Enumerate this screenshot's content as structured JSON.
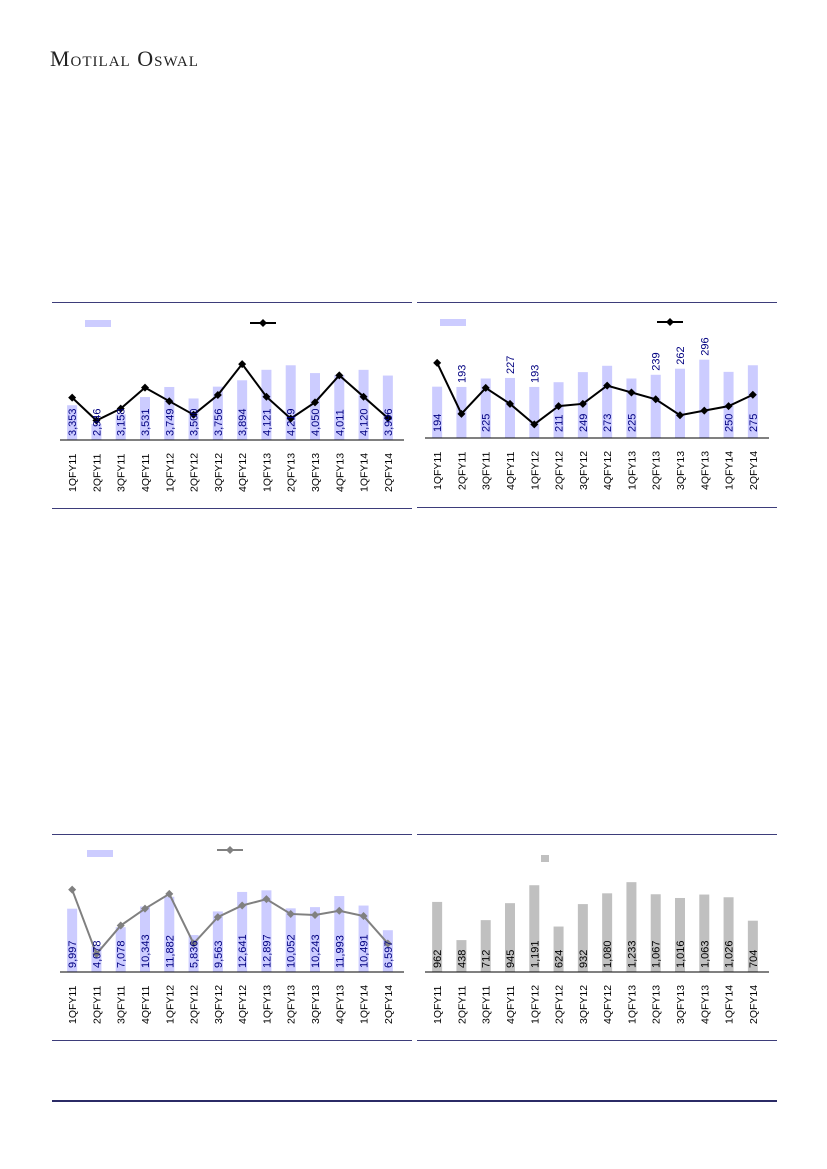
{
  "header": {
    "brand": "Motilal Oswal"
  },
  "chart_data": [
    {
      "type": "bar",
      "categories": [
        "1QFY11",
        "2QFY11",
        "3QFY11",
        "4QFY11",
        "1QFY12",
        "2QFY12",
        "3QFY12",
        "4QFY12",
        "1QFY13",
        "2QFY13",
        "3QFY13",
        "4QFY13",
        "1QFY14",
        "2QFY14"
      ],
      "series": [
        {
          "type": "bar",
          "values": [
            3353,
            2946,
            3158,
            3531,
            3749,
            3500,
            3756,
            3894,
            4121,
            4219,
            4050,
            4011,
            4120,
            3996
          ],
          "labels": [
            "3,353",
            "2,946",
            "3,158",
            "3,531",
            "3,749",
            "3,500",
            "3,756",
            "3,894",
            "4,121",
            "4,219",
            "4,050",
            "4,011",
            "4,120",
            "3,996"
          ]
        },
        {
          "type": "line",
          "values": [
            3353,
            2946,
            3158,
            3531,
            3290,
            3050,
            3400,
            3950,
            3370,
            2980,
            3270,
            3750,
            3370,
            2990
          ]
        }
      ],
      "colors": {
        "bar": "#ccccff",
        "line": "#000000",
        "label": "#000080"
      }
    },
    {
      "type": "bar",
      "categories": [
        "1QFY11",
        "2QFY11",
        "3QFY11",
        "4QFY11",
        "1QFY12",
        "2QFY12",
        "3QFY12",
        "4QFY12",
        "1QFY13",
        "2QFY13",
        "3QFY13",
        "4QFY13",
        "1QFY14",
        "2QFY14"
      ],
      "series": [
        {
          "type": "bar",
          "values": [
            194,
            193,
            225,
            227,
            193,
            211,
            249,
            273,
            225,
            239,
            262,
            296,
            250,
            275
          ],
          "labels": [
            "194",
            "193",
            "225",
            "227",
            "193",
            "211",
            "249",
            "273",
            "225",
            "239",
            "262",
            "296",
            "250",
            "275"
          ]
        },
        {
          "type": "line",
          "values": [
            305,
            193,
            250,
            215,
            170,
            210,
            215,
            255,
            240,
            225,
            190,
            200,
            210,
            235
          ]
        }
      ],
      "colors": {
        "bar": "#ccccff",
        "line": "#000000",
        "label": "#000080"
      }
    },
    {
      "type": "bar",
      "categories": [
        "1QFY11",
        "2QFY11",
        "3QFY11",
        "4QFY11",
        "1QFY12",
        "2QFY12",
        "3QFY12",
        "4QFY12",
        "1QFY13",
        "2QFY13",
        "3QFY13",
        "4QFY13",
        "1QFY14",
        "2QFY14"
      ],
      "series": [
        {
          "type": "bar",
          "values": [
            9997,
            4078,
            7078,
            10343,
            11882,
            5836,
            9563,
            12641,
            12897,
            10052,
            10243,
            11993,
            10491,
            6597
          ],
          "labels": [
            "9,997",
            "4,078",
            "7,078",
            "10,343",
            "11,882",
            "5,836",
            "9,563",
            "12,641",
            "12,897",
            "10,052",
            "10,243",
            "11,993",
            "10,491",
            "6,597"
          ]
        },
        {
          "type": "line",
          "values": [
            12800,
            6700,
            9400,
            11000,
            12400,
            7700,
            10200,
            11300,
            11900,
            10500,
            10400,
            10800,
            10300,
            7700
          ]
        }
      ],
      "colors": {
        "bar": "#ccccff",
        "line": "#808080",
        "label": "#000080"
      }
    },
    {
      "type": "bar",
      "categories": [
        "1QFY11",
        "2QFY11",
        "3QFY11",
        "4QFY11",
        "1QFY12",
        "2QFY12",
        "3QFY12",
        "4QFY12",
        "1QFY13",
        "2QFY13",
        "3QFY13",
        "4QFY13",
        "1QFY14",
        "2QFY14"
      ],
      "series": [
        {
          "type": "bar",
          "values": [
            962,
            438,
            712,
            945,
            1191,
            624,
            932,
            1080,
            1233,
            1067,
            1016,
            1063,
            1026,
            704
          ],
          "labels": [
            "962",
            "438",
            "712",
            "945",
            "1,191",
            "624",
            "932",
            "1,080",
            "1,233",
            "1,067",
            "1,016",
            "1,063",
            "1,026",
            "704"
          ]
        }
      ],
      "colors": {
        "bar": "#c0c0c0",
        "label": "#000000"
      }
    }
  ]
}
